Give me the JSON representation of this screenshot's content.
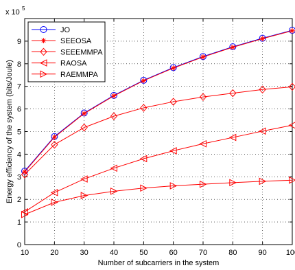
{
  "chart_data": {
    "type": "line",
    "xlabel": "Number of subcarriers in the system",
    "ylabel": "Energy efficiency of the system  (bits/Joule)",
    "y_multiplier_label": "x 10",
    "y_multiplier_exponent": "5",
    "x": [
      10,
      20,
      30,
      40,
      50,
      60,
      70,
      80,
      90,
      100
    ],
    "xlim": [
      10,
      100
    ],
    "ylim": [
      0,
      10
    ],
    "x_ticks": [
      "10",
      "20",
      "30",
      "40",
      "50",
      "60",
      "70",
      "80",
      "90",
      "100"
    ],
    "y_ticks": [
      "0",
      "1",
      "2",
      "3",
      "4",
      "5",
      "6",
      "7",
      "8",
      "9"
    ],
    "grid": true,
    "legend_position": "top-left",
    "series": [
      {
        "name": "JO",
        "marker": "circle",
        "color": "#0000ff",
        "values": [
          3.25,
          4.78,
          5.82,
          6.6,
          7.27,
          7.83,
          8.32,
          8.75,
          9.13,
          9.48
        ]
      },
      {
        "name": "SEEOSA",
        "marker": "star",
        "color": "#ff0000",
        "values": [
          3.22,
          4.75,
          5.8,
          6.58,
          7.25,
          7.81,
          8.3,
          8.73,
          9.11,
          9.46
        ]
      },
      {
        "name": "SEEEMMPA",
        "marker": "diamond",
        "color": "#ff0000",
        "values": [
          3.1,
          4.42,
          5.18,
          5.68,
          6.05,
          6.32,
          6.53,
          6.7,
          6.86,
          6.98
        ]
      },
      {
        "name": "RAOSA",
        "marker": "triangle-left",
        "color": "#ff0000",
        "values": [
          1.45,
          2.3,
          2.9,
          3.38,
          3.8,
          4.15,
          4.46,
          4.74,
          5.02,
          5.28
        ]
      },
      {
        "name": "RAEMMPA",
        "marker": "triangle-right",
        "color": "#ff0000",
        "values": [
          1.33,
          1.87,
          2.17,
          2.36,
          2.5,
          2.6,
          2.67,
          2.74,
          2.8,
          2.85
        ]
      }
    ]
  }
}
